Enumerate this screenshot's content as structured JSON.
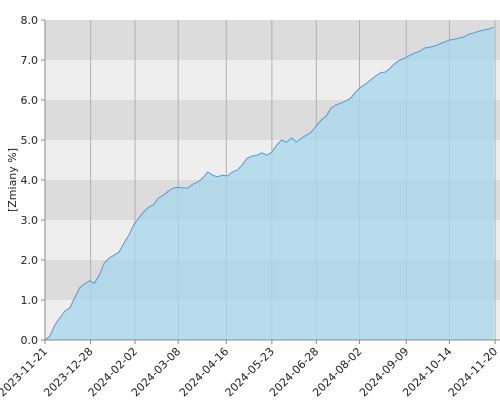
{
  "chart_data": {
    "type": "area",
    "y_label": "[Zmiany %]",
    "x": [
      "2023-11-21",
      "2023-11-25",
      "2023-11-29",
      "2023-12-03",
      "2023-12-07",
      "2023-12-11",
      "2023-12-15",
      "2023-12-19",
      "2023-12-23",
      "2023-12-27",
      "2023-12-31",
      "2024-01-04",
      "2024-01-08",
      "2024-01-12",
      "2024-01-16",
      "2024-01-20",
      "2024-01-24",
      "2024-01-28",
      "2024-02-01",
      "2024-02-05",
      "2024-02-09",
      "2024-02-13",
      "2024-02-17",
      "2024-02-21",
      "2024-02-25",
      "2024-02-29",
      "2024-03-04",
      "2024-03-08",
      "2024-03-12",
      "2024-03-16",
      "2024-03-20",
      "2024-03-24",
      "2024-03-28",
      "2024-04-01",
      "2024-04-05",
      "2024-04-09",
      "2024-04-13",
      "2024-04-17",
      "2024-04-21",
      "2024-04-25",
      "2024-04-29",
      "2024-05-03",
      "2024-05-07",
      "2024-05-11",
      "2024-05-15",
      "2024-05-19",
      "2024-05-23",
      "2024-05-27",
      "2024-05-31",
      "2024-06-04",
      "2024-06-08",
      "2024-06-12",
      "2024-06-16",
      "2024-06-20",
      "2024-06-24",
      "2024-06-28",
      "2024-07-02",
      "2024-07-06",
      "2024-07-10",
      "2024-07-14",
      "2024-07-18",
      "2024-07-22",
      "2024-07-26",
      "2024-07-30",
      "2024-08-03",
      "2024-08-07",
      "2024-08-11",
      "2024-08-15",
      "2024-08-19",
      "2024-08-23",
      "2024-08-27",
      "2024-08-31",
      "2024-09-04",
      "2024-09-08",
      "2024-09-12",
      "2024-09-16",
      "2024-09-20",
      "2024-09-24",
      "2024-09-28",
      "2024-10-02",
      "2024-10-06",
      "2024-10-10",
      "2024-10-14",
      "2024-10-18",
      "2024-10-22",
      "2024-10-26",
      "2024-10-30",
      "2024-11-03",
      "2024-11-07",
      "2024-11-11",
      "2024-11-15",
      "2024-11-19"
    ],
    "series": [
      {
        "color": "#4a9ee0",
        "fill": "#a9d8ec",
        "values": [
          0.0,
          0.1,
          0.38,
          0.55,
          0.72,
          0.8,
          1.05,
          1.3,
          1.4,
          1.48,
          1.42,
          1.62,
          1.92,
          2.05,
          2.12,
          2.2,
          2.42,
          2.62,
          2.88,
          3.05,
          3.2,
          3.32,
          3.38,
          3.55,
          3.62,
          3.72,
          3.8,
          3.82,
          3.8,
          3.8,
          3.9,
          3.95,
          4.05,
          4.2,
          4.12,
          4.08,
          4.12,
          4.1,
          4.2,
          4.25,
          4.38,
          4.55,
          4.6,
          4.62,
          4.68,
          4.62,
          4.7,
          4.88,
          5.0,
          4.95,
          5.05,
          4.95,
          5.05,
          5.12,
          5.2,
          5.35,
          5.5,
          5.6,
          5.8,
          5.88,
          5.92,
          5.98,
          6.05,
          6.2,
          6.32,
          6.4,
          6.5,
          6.6,
          6.68,
          6.7,
          6.8,
          6.92,
          7.0,
          7.05,
          7.12,
          7.18,
          7.22,
          7.3,
          7.32,
          7.35,
          7.4,
          7.45,
          7.5,
          7.52,
          7.55,
          7.58,
          7.65,
          7.68,
          7.72,
          7.75,
          7.78,
          7.82
        ]
      }
    ],
    "xlim": [
      "2023-11-21",
      "2024-11-24"
    ],
    "xticks": [
      "2023-11-21",
      "2023-12-28",
      "2024-02-02",
      "2024-03-08",
      "2024-04-16",
      "2024-05-23",
      "2024-06-28",
      "2024-08-02",
      "2024-09-09",
      "2024-10-14",
      "2024-11-20"
    ],
    "ylim": [
      0,
      8
    ],
    "yticks": [
      {
        "value": 0,
        "label": "0.0"
      },
      {
        "value": 1,
        "label": "1.0"
      },
      {
        "value": 2,
        "label": "2.0"
      },
      {
        "value": 3,
        "label": "3.0"
      },
      {
        "value": 4,
        "label": "4.0"
      },
      {
        "value": 5,
        "label": "5.0"
      },
      {
        "value": 6,
        "label": "6.0"
      },
      {
        "value": 7,
        "label": "7.0"
      },
      {
        "value": 8,
        "label": "8.0"
      }
    ],
    "grid": true
  }
}
